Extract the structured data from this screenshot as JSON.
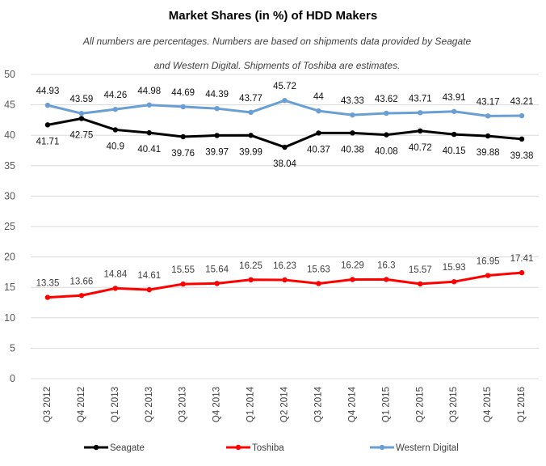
{
  "chart_data": {
    "type": "line",
    "title": "Market Shares (in %) of HDD Makers",
    "subtitle_lines": [
      "All numbers are percentages. Numbers are based on shipments data provided by Seagate",
      "and Western Digital. Shipments  of Toshiba are estimates."
    ],
    "categories": [
      "Q3 2012",
      "Q4 2012",
      "Q1 2013",
      "Q2 2013",
      "Q3 2013",
      "Q4 2013",
      "Q1 2014",
      "Q2 2014",
      "Q3 2014",
      "Q4 2014",
      "Q1 2015",
      "Q2 2015",
      "Q3 2015",
      "Q4 2015",
      "Q1 2016"
    ],
    "ylim": [
      0,
      50
    ],
    "yticks": [
      0,
      5,
      10,
      15,
      20,
      25,
      30,
      35,
      40,
      45,
      50
    ],
    "grid": true,
    "legend_position": "bottom",
    "series": [
      {
        "key": "sg",
        "name": "Seagate",
        "color": "#000000",
        "label_position": "below",
        "values": [
          41.71,
          42.75,
          40.9,
          40.41,
          39.76,
          39.97,
          39.99,
          38.04,
          40.37,
          40.38,
          40.08,
          40.72,
          40.15,
          39.88,
          39.38
        ],
        "labels": [
          "41.71",
          "42.75",
          "40.9",
          "40.41",
          "39.76",
          "39.97",
          "39.99",
          "38.04",
          "40.37",
          "40.38",
          "40.08",
          "40.72",
          "40.15",
          "39.88",
          "39.38"
        ]
      },
      {
        "key": "tb",
        "name": "Toshiba",
        "color": "#ff0000",
        "label_position": "above",
        "values": [
          13.35,
          13.66,
          14.84,
          14.61,
          15.55,
          15.64,
          16.25,
          16.23,
          15.63,
          16.29,
          16.3,
          15.57,
          15.93,
          16.95,
          17.41
        ],
        "labels": [
          "13.35",
          "13.66",
          "14.84",
          "14.61",
          "15.55",
          "15.64",
          "16.25",
          "16.23",
          "15.63",
          "16.29",
          "16.3",
          "15.57",
          "15.93",
          "16.95",
          "17.41"
        ]
      },
      {
        "key": "wd",
        "name": "Western Digital",
        "color": "#6a9fd4",
        "label_position": "above",
        "values": [
          44.93,
          43.59,
          44.26,
          44.98,
          44.69,
          44.39,
          43.77,
          45.72,
          44,
          43.33,
          43.62,
          43.71,
          43.91,
          43.17,
          43.21
        ],
        "labels": [
          "44.93",
          "43.59",
          "44.26",
          "44.98",
          "44.69",
          "44.39",
          "43.77",
          "45.72",
          "44",
          "43.33",
          "43.62",
          "43.71",
          "43.91",
          "43.17",
          "43.21"
        ]
      }
    ]
  }
}
